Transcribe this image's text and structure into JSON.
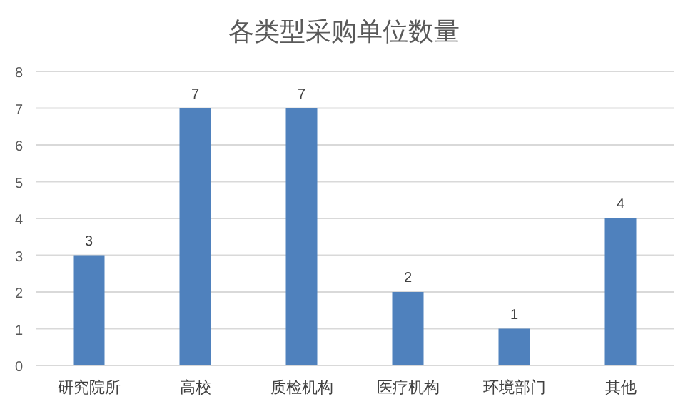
{
  "chart_data": {
    "type": "bar",
    "title": "各类型采购单位数量",
    "categories": [
      "研究院所",
      "高校",
      "质检机构",
      "医疗机构",
      "环境部门",
      "其他"
    ],
    "values": [
      3,
      7,
      7,
      2,
      1,
      4
    ],
    "color": "#4f81bd",
    "ylim": [
      0,
      8
    ],
    "yticks": [
      0,
      1,
      2,
      3,
      4,
      5,
      6,
      7,
      8
    ],
    "grid": "y",
    "data_labels": true
  }
}
